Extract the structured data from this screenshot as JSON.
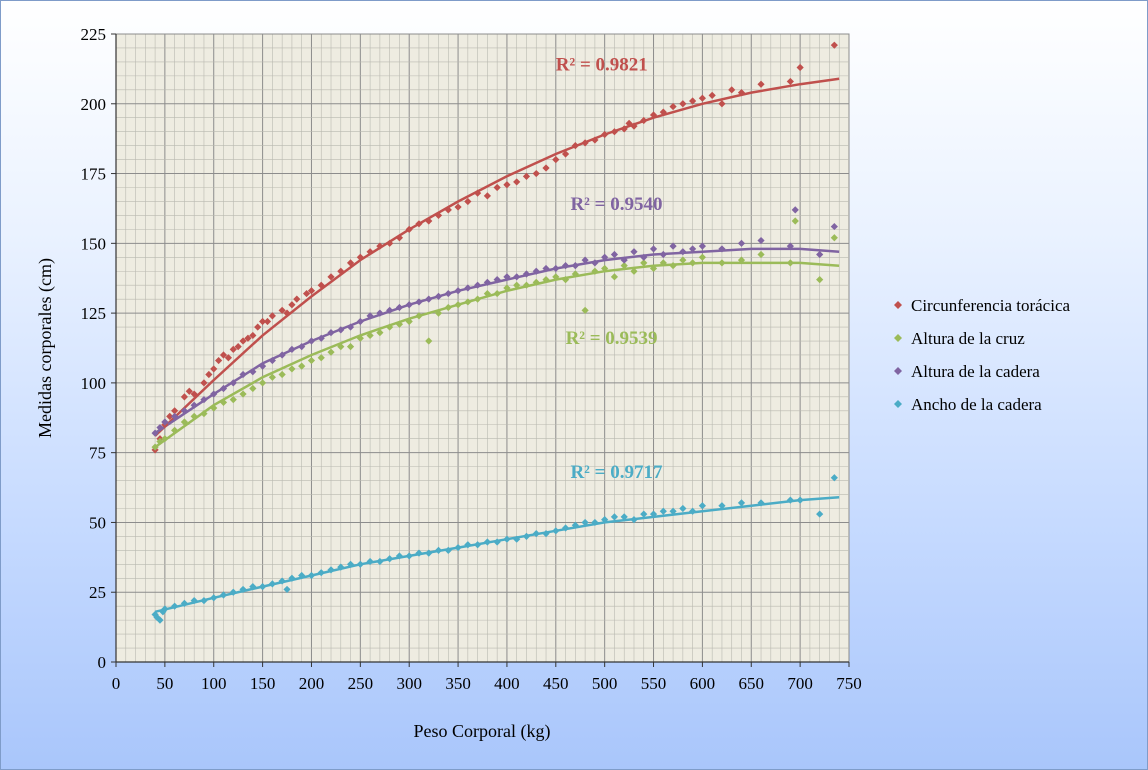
{
  "chart_data": {
    "type": "scatter",
    "title": "",
    "xlabel": "Peso Corporal (kg)",
    "ylabel": "Medidas corporales (cm)",
    "xlim": [
      0,
      750
    ],
    "ylim": [
      0,
      225
    ],
    "xticks": [
      0,
      50,
      100,
      150,
      200,
      250,
      300,
      350,
      400,
      450,
      500,
      550,
      600,
      650,
      700,
      750
    ],
    "yticks": [
      0,
      25,
      50,
      75,
      100,
      125,
      150,
      175,
      200,
      225
    ],
    "grid": true,
    "legend_position": "right",
    "series": [
      {
        "name": "Circunferencia torácica",
        "color": "#c0504d",
        "r2_label": "R² = 0.9821",
        "label_at": [
          450,
          212
        ],
        "trend": {
          "x": [
            40,
            100,
            150,
            200,
            250,
            300,
            350,
            400,
            450,
            500,
            550,
            600,
            650,
            700,
            740
          ],
          "y": [
            81,
            101,
            117,
            131,
            144,
            155,
            165,
            174,
            182,
            189,
            195,
            200,
            204,
            207,
            209
          ]
        },
        "points": [
          [
            40,
            76
          ],
          [
            45,
            80
          ],
          [
            50,
            85
          ],
          [
            55,
            88
          ],
          [
            60,
            90
          ],
          [
            70,
            95
          ],
          [
            75,
            97
          ],
          [
            80,
            96
          ],
          [
            90,
            100
          ],
          [
            95,
            103
          ],
          [
            100,
            105
          ],
          [
            105,
            108
          ],
          [
            110,
            110
          ],
          [
            115,
            109
          ],
          [
            120,
            112
          ],
          [
            125,
            113
          ],
          [
            130,
            115
          ],
          [
            135,
            116
          ],
          [
            140,
            117
          ],
          [
            145,
            120
          ],
          [
            150,
            122
          ],
          [
            155,
            122
          ],
          [
            160,
            124
          ],
          [
            170,
            126
          ],
          [
            175,
            125
          ],
          [
            180,
            128
          ],
          [
            185,
            130
          ],
          [
            195,
            132
          ],
          [
            200,
            133
          ],
          [
            210,
            135
          ],
          [
            220,
            138
          ],
          [
            230,
            140
          ],
          [
            240,
            143
          ],
          [
            250,
            145
          ],
          [
            260,
            147
          ],
          [
            270,
            149
          ],
          [
            280,
            150
          ],
          [
            290,
            152
          ],
          [
            300,
            155
          ],
          [
            310,
            157
          ],
          [
            320,
            158
          ],
          [
            330,
            160
          ],
          [
            340,
            162
          ],
          [
            350,
            163
          ],
          [
            360,
            165
          ],
          [
            370,
            168
          ],
          [
            380,
            167
          ],
          [
            390,
            170
          ],
          [
            400,
            171
          ],
          [
            410,
            172
          ],
          [
            420,
            174
          ],
          [
            430,
            175
          ],
          [
            440,
            177
          ],
          [
            450,
            180
          ],
          [
            460,
            182
          ],
          [
            470,
            185
          ],
          [
            480,
            186
          ],
          [
            490,
            187
          ],
          [
            500,
            189
          ],
          [
            510,
            190
          ],
          [
            520,
            191
          ],
          [
            525,
            193
          ],
          [
            530,
            192
          ],
          [
            540,
            194
          ],
          [
            550,
            196
          ],
          [
            560,
            197
          ],
          [
            570,
            199
          ],
          [
            580,
            200
          ],
          [
            590,
            201
          ],
          [
            600,
            202
          ],
          [
            610,
            203
          ],
          [
            620,
            200
          ],
          [
            630,
            205
          ],
          [
            640,
            204
          ],
          [
            660,
            207
          ],
          [
            690,
            208
          ],
          [
            700,
            213
          ],
          [
            735,
            221
          ]
        ]
      },
      {
        "name": "Altura de la cruz",
        "color": "#9bbb59",
        "r2_label": "R² = 0.9539",
        "label_at": [
          460,
          114
        ],
        "trend": {
          "x": [
            40,
            100,
            150,
            200,
            250,
            300,
            350,
            400,
            450,
            500,
            550,
            600,
            650,
            700,
            740
          ],
          "y": [
            77,
            92,
            102,
            110,
            117,
            123,
            128,
            133,
            137,
            140,
            142,
            143,
            143,
            143,
            142
          ]
        },
        "points": [
          [
            40,
            77
          ],
          [
            45,
            79
          ],
          [
            50,
            80
          ],
          [
            60,
            83
          ],
          [
            70,
            86
          ],
          [
            80,
            88
          ],
          [
            90,
            89
          ],
          [
            100,
            91
          ],
          [
            110,
            93
          ],
          [
            120,
            94
          ],
          [
            130,
            96
          ],
          [
            140,
            98
          ],
          [
            150,
            100
          ],
          [
            160,
            102
          ],
          [
            170,
            103
          ],
          [
            180,
            105
          ],
          [
            190,
            106
          ],
          [
            200,
            108
          ],
          [
            210,
            109
          ],
          [
            220,
            111
          ],
          [
            230,
            113
          ],
          [
            240,
            113
          ],
          [
            250,
            116
          ],
          [
            260,
            117
          ],
          [
            270,
            118
          ],
          [
            280,
            120
          ],
          [
            290,
            121
          ],
          [
            300,
            122
          ],
          [
            310,
            124
          ],
          [
            320,
            115
          ],
          [
            330,
            125
          ],
          [
            340,
            127
          ],
          [
            350,
            128
          ],
          [
            360,
            129
          ],
          [
            370,
            130
          ],
          [
            380,
            132
          ],
          [
            390,
            132
          ],
          [
            400,
            134
          ],
          [
            410,
            135
          ],
          [
            420,
            135
          ],
          [
            430,
            136
          ],
          [
            440,
            137
          ],
          [
            450,
            138
          ],
          [
            460,
            137
          ],
          [
            470,
            139
          ],
          [
            480,
            126
          ],
          [
            490,
            140
          ],
          [
            500,
            141
          ],
          [
            510,
            138
          ],
          [
            520,
            142
          ],
          [
            530,
            140
          ],
          [
            540,
            143
          ],
          [
            550,
            141
          ],
          [
            560,
            143
          ],
          [
            570,
            142
          ],
          [
            580,
            144
          ],
          [
            590,
            143
          ],
          [
            600,
            145
          ],
          [
            620,
            143
          ],
          [
            640,
            144
          ],
          [
            660,
            146
          ],
          [
            690,
            143
          ],
          [
            695,
            158
          ],
          [
            720,
            137
          ],
          [
            735,
            152
          ]
        ]
      },
      {
        "name": "Altura de la cadera",
        "color": "#8064a2",
        "r2_label": "R² = 0.9540",
        "label_at": [
          465,
          162
        ],
        "trend": {
          "x": [
            40,
            100,
            150,
            200,
            250,
            300,
            350,
            400,
            450,
            500,
            550,
            600,
            650,
            700,
            740
          ],
          "y": [
            82,
            96,
            107,
            115,
            122,
            128,
            133,
            137,
            141,
            144,
            146,
            147,
            148,
            148,
            147
          ]
        },
        "points": [
          [
            40,
            82
          ],
          [
            45,
            84
          ],
          [
            50,
            86
          ],
          [
            60,
            88
          ],
          [
            70,
            90
          ],
          [
            80,
            92
          ],
          [
            90,
            94
          ],
          [
            100,
            96
          ],
          [
            110,
            98
          ],
          [
            120,
            100
          ],
          [
            130,
            103
          ],
          [
            140,
            104
          ],
          [
            150,
            106
          ],
          [
            160,
            108
          ],
          [
            170,
            110
          ],
          [
            180,
            112
          ],
          [
            190,
            113
          ],
          [
            200,
            115
          ],
          [
            210,
            116
          ],
          [
            220,
            118
          ],
          [
            230,
            119
          ],
          [
            240,
            120
          ],
          [
            250,
            122
          ],
          [
            260,
            124
          ],
          [
            270,
            125
          ],
          [
            280,
            126
          ],
          [
            290,
            127
          ],
          [
            300,
            128
          ],
          [
            310,
            129
          ],
          [
            320,
            130
          ],
          [
            330,
            131
          ],
          [
            340,
            132
          ],
          [
            350,
            133
          ],
          [
            360,
            134
          ],
          [
            370,
            135
          ],
          [
            380,
            136
          ],
          [
            390,
            137
          ],
          [
            400,
            138
          ],
          [
            410,
            138
          ],
          [
            420,
            139
          ],
          [
            430,
            140
          ],
          [
            440,
            141
          ],
          [
            450,
            141
          ],
          [
            460,
            142
          ],
          [
            470,
            142
          ],
          [
            480,
            144
          ],
          [
            490,
            143
          ],
          [
            500,
            145
          ],
          [
            510,
            146
          ],
          [
            520,
            144
          ],
          [
            530,
            147
          ],
          [
            540,
            145
          ],
          [
            550,
            148
          ],
          [
            560,
            146
          ],
          [
            570,
            149
          ],
          [
            580,
            147
          ],
          [
            590,
            148
          ],
          [
            600,
            149
          ],
          [
            620,
            148
          ],
          [
            640,
            150
          ],
          [
            660,
            151
          ],
          [
            690,
            149
          ],
          [
            695,
            162
          ],
          [
            720,
            146
          ],
          [
            735,
            156
          ]
        ]
      },
      {
        "name": "Ancho de la cadera",
        "color": "#4bacc6",
        "r2_label": "R² = 0.9717",
        "label_at": [
          465,
          66
        ],
        "trend": {
          "x": [
            40,
            100,
            150,
            200,
            250,
            300,
            350,
            400,
            450,
            500,
            550,
            600,
            650,
            700,
            740
          ],
          "y": [
            18,
            23,
            27,
            31,
            35,
            38,
            41,
            44,
            47,
            50,
            52,
            54,
            56,
            58,
            59
          ]
        },
        "points": [
          [
            40,
            17
          ],
          [
            42,
            16
          ],
          [
            45,
            15
          ],
          [
            48,
            18
          ],
          [
            50,
            19
          ],
          [
            60,
            20
          ],
          [
            70,
            21
          ],
          [
            80,
            22
          ],
          [
            90,
            22
          ],
          [
            100,
            23
          ],
          [
            110,
            24
          ],
          [
            120,
            25
          ],
          [
            130,
            26
          ],
          [
            140,
            27
          ],
          [
            150,
            27
          ],
          [
            160,
            28
          ],
          [
            170,
            29
          ],
          [
            175,
            26
          ],
          [
            180,
            30
          ],
          [
            190,
            31
          ],
          [
            200,
            31
          ],
          [
            210,
            32
          ],
          [
            220,
            33
          ],
          [
            230,
            34
          ],
          [
            240,
            35
          ],
          [
            250,
            35
          ],
          [
            260,
            36
          ],
          [
            270,
            36
          ],
          [
            280,
            37
          ],
          [
            290,
            38
          ],
          [
            300,
            38
          ],
          [
            310,
            39
          ],
          [
            320,
            39
          ],
          [
            330,
            40
          ],
          [
            340,
            40
          ],
          [
            350,
            41
          ],
          [
            360,
            42
          ],
          [
            370,
            42
          ],
          [
            380,
            43
          ],
          [
            390,
            43
          ],
          [
            400,
            44
          ],
          [
            410,
            44
          ],
          [
            420,
            45
          ],
          [
            430,
            46
          ],
          [
            440,
            46
          ],
          [
            450,
            47
          ],
          [
            460,
            48
          ],
          [
            470,
            49
          ],
          [
            480,
            50
          ],
          [
            490,
            50
          ],
          [
            500,
            51
          ],
          [
            510,
            52
          ],
          [
            520,
            52
          ],
          [
            530,
            51
          ],
          [
            540,
            53
          ],
          [
            550,
            53
          ],
          [
            560,
            54
          ],
          [
            570,
            54
          ],
          [
            580,
            55
          ],
          [
            590,
            54
          ],
          [
            600,
            56
          ],
          [
            620,
            56
          ],
          [
            640,
            57
          ],
          [
            660,
            57
          ],
          [
            690,
            58
          ],
          [
            700,
            58
          ],
          [
            720,
            53
          ],
          [
            735,
            66
          ]
        ]
      }
    ]
  }
}
